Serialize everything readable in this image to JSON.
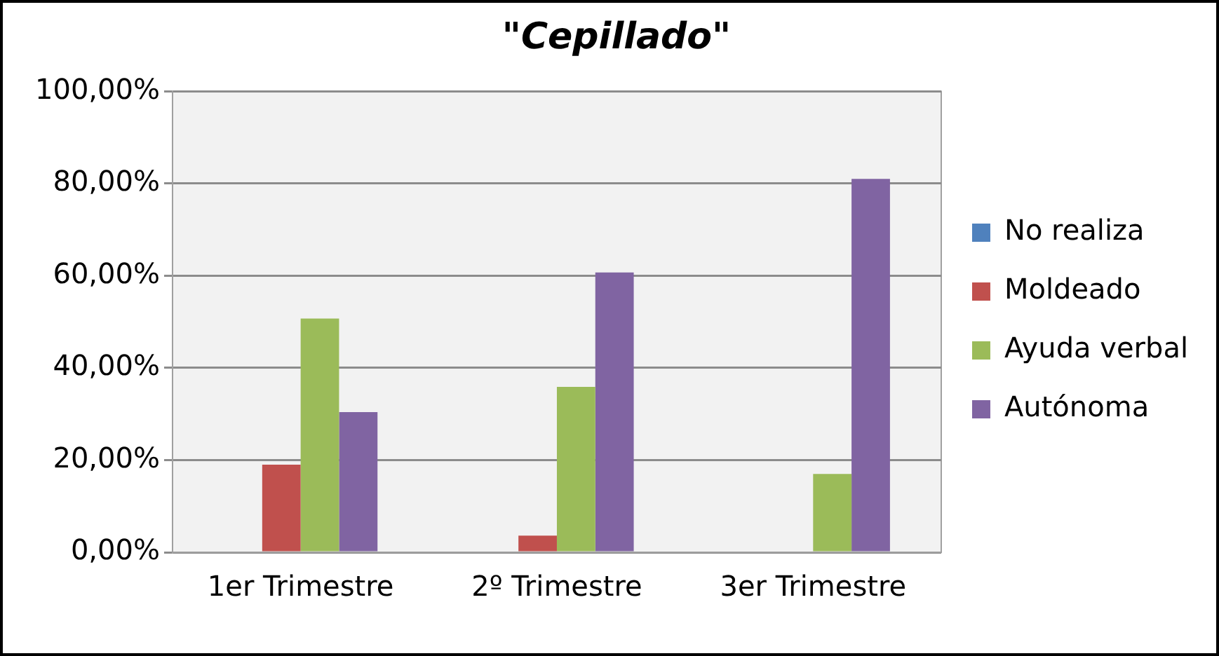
{
  "chart_data": {
    "type": "bar",
    "title": "\"Cepillado\"",
    "categories": [
      "1er Trimestre",
      "2º Trimestre",
      "3er Trimestre"
    ],
    "series": [
      {
        "name": "No realiza",
        "color": "#4f81bd",
        "values": [
          0,
          0,
          0
        ]
      },
      {
        "name": "Moldeado",
        "color": "#c0504d",
        "values": [
          19,
          3.6,
          0
        ]
      },
      {
        "name": "Ayuda verbal",
        "color": "#9bbb59",
        "values": [
          50.7,
          35.9,
          17
        ]
      },
      {
        "name": "Autónoma",
        "color": "#8064a2",
        "values": [
          30.4,
          60.7,
          81
        ]
      }
    ],
    "ylim": [
      0,
      100
    ],
    "yticks": [
      {
        "value": 0,
        "label": "0,00%"
      },
      {
        "value": 20,
        "label": "20,00%"
      },
      {
        "value": 40,
        "label": "40,00%"
      },
      {
        "value": 60,
        "label": "60,00%"
      },
      {
        "value": 80,
        "label": "80,00%"
      },
      {
        "value": 100,
        "label": "100,00%"
      }
    ],
    "grid": "y",
    "legend": "right"
  }
}
